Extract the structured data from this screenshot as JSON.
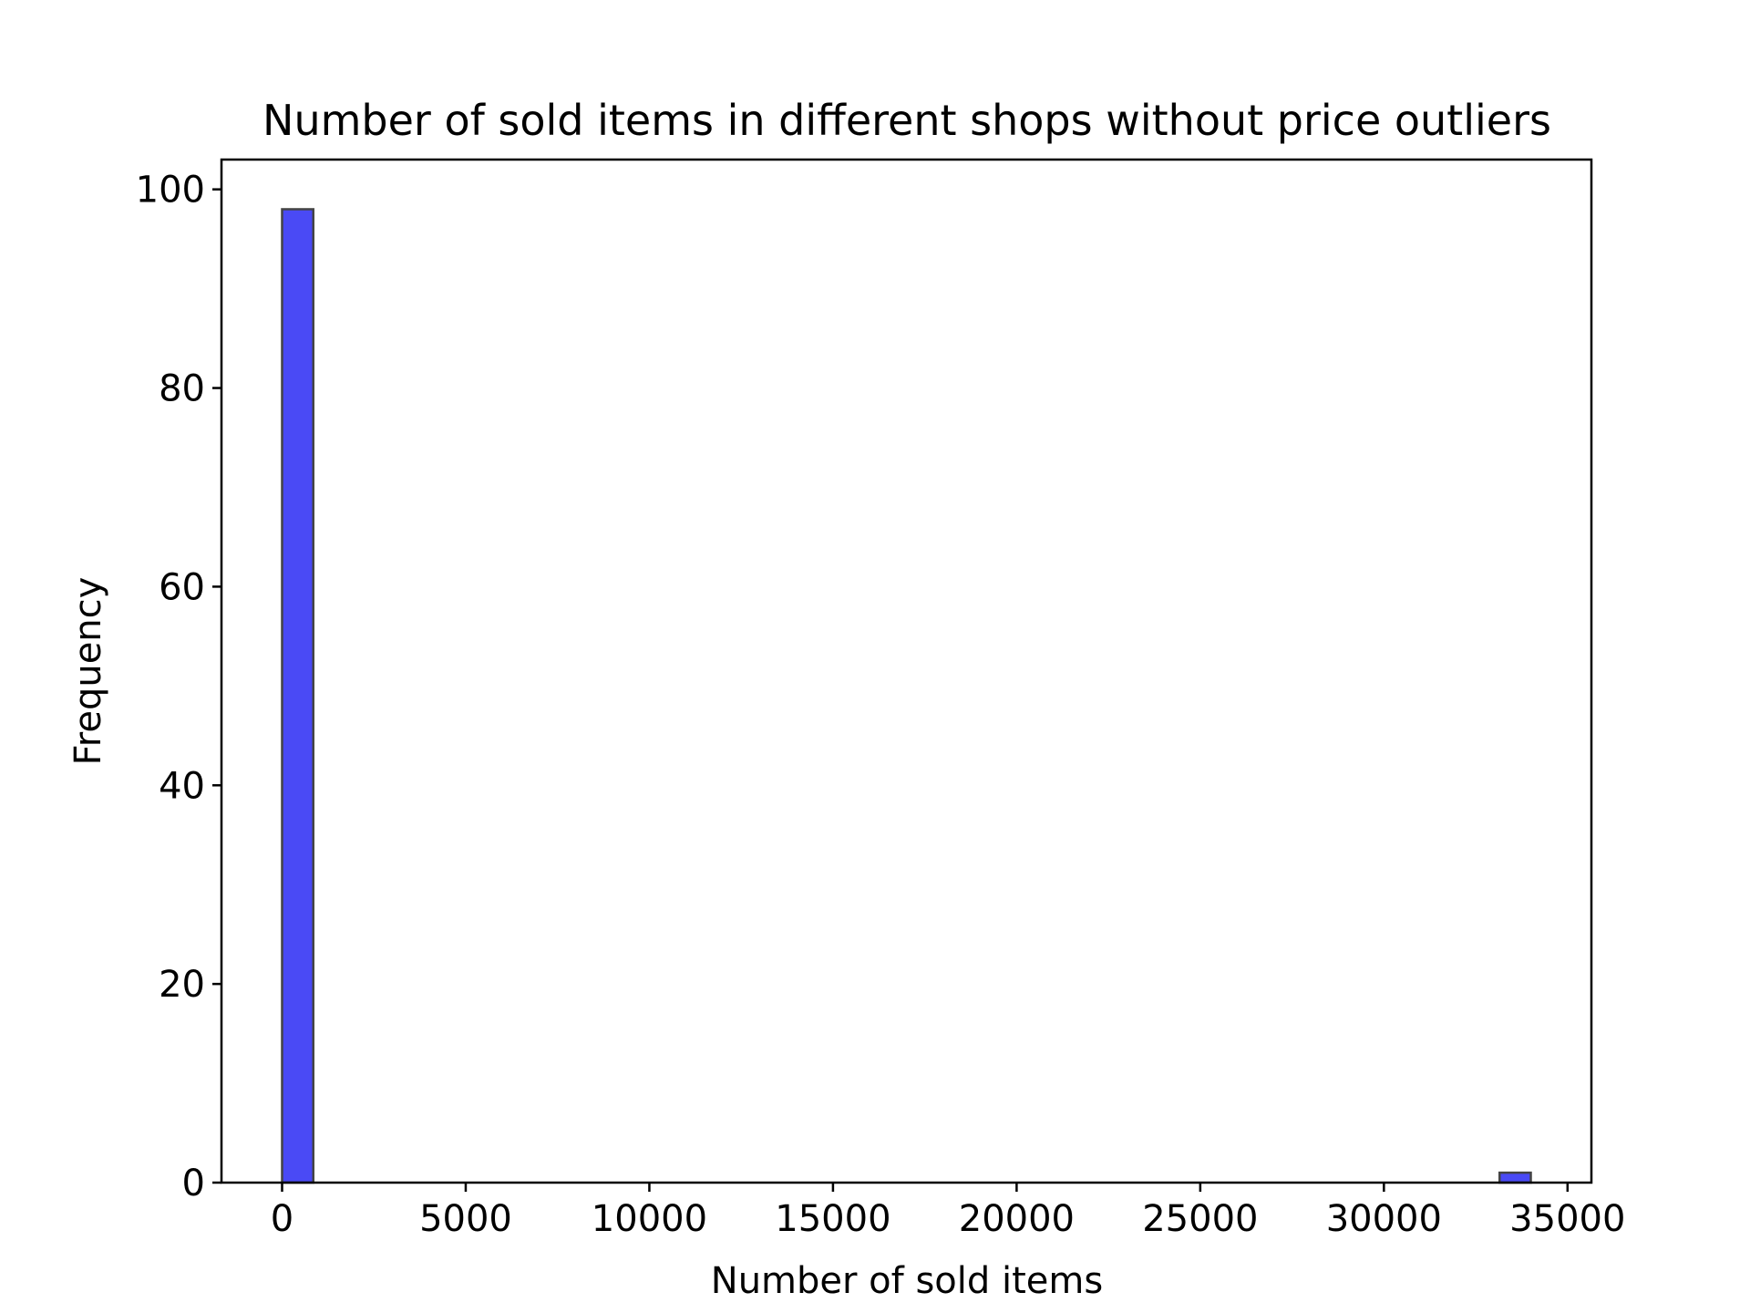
{
  "chart_data": {
    "type": "bar",
    "title": "Number of sold items in different shops without price outliers",
    "xlabel": "Number of sold items",
    "ylabel": "Frequency",
    "xlim": [
      -1650,
      35650
    ],
    "ylim": [
      0,
      103
    ],
    "xticks": [
      0,
      5000,
      10000,
      15000,
      20000,
      25000,
      30000,
      35000
    ],
    "yticks": [
      0,
      20,
      40,
      60,
      80,
      100
    ],
    "bins": [
      {
        "x0": 0,
        "x1": 850,
        "count": 98
      },
      {
        "x0": 33150,
        "x1": 34000,
        "count": 1
      }
    ],
    "bar_color": "#4a4af5",
    "edge_color": "#444444",
    "grid": false,
    "legend": "none"
  }
}
